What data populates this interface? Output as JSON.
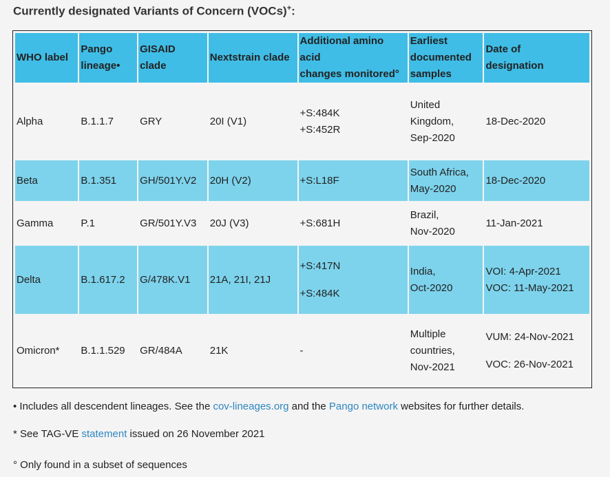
{
  "heading": {
    "text": "Currently designated Variants of Concern (VOCs)",
    "sup": "+"
  },
  "table": {
    "headers": [
      [
        "WHO label"
      ],
      [
        "Pango",
        "lineage•"
      ],
      [
        "GISAID",
        "clade"
      ],
      [
        "Nextstrain clade"
      ],
      [
        "Additional amino",
        "acid",
        "changes monitored°"
      ],
      [
        "Earliest",
        "documented",
        "samples"
      ],
      [
        "Date of",
        "designation"
      ]
    ],
    "rows": [
      {
        "who": "Alpha",
        "pango": "B.1.1.7",
        "gisaid": "GRY",
        "nextstrain": "20I (V1)",
        "changes": [
          "+S:484K",
          "+S:452R"
        ],
        "samples": [
          "United",
          "Kingdom,",
          "Sep-2020"
        ],
        "dates": [
          "18-Dec-2020"
        ]
      },
      {
        "who": "Beta",
        "pango": "B.1.351",
        "gisaid": "GH/501Y.V2",
        "nextstrain": "20H (V2)",
        "changes": [
          "+S:L18F"
        ],
        "samples": [
          "South Africa,",
          "May-2020"
        ],
        "dates": [
          "18-Dec-2020"
        ]
      },
      {
        "who": "Gamma",
        "pango": "P.1",
        "gisaid": "GR/501Y.V3",
        "nextstrain": "20J (V3)",
        "changes": [
          "+S:681H"
        ],
        "samples": [
          "Brazil,",
          "Nov-2020"
        ],
        "dates": [
          "11-Jan-2021"
        ]
      },
      {
        "who": "Delta",
        "pango": "B.1.617.2",
        "gisaid": "G/478K.V1",
        "nextstrain": "21A, 21I, 21J",
        "changes": [
          "+S:417N",
          "+S:484K"
        ],
        "samples": [
          "India,",
          "Oct-2020"
        ],
        "dates": [
          "VOI: 4-Apr-2021",
          "VOC: 11-May-2021"
        ]
      },
      {
        "who": "Omicron*",
        "pango": "B.1.1.529",
        "gisaid": "GR/484A",
        "nextstrain": "21K",
        "changes": [
          "-"
        ],
        "samples": [
          "Multiple",
          "countries,",
          "Nov-2021"
        ],
        "dates": [
          "VUM: 24-Nov-2021",
          "VOC: 26-Nov-2021"
        ]
      }
    ]
  },
  "notes": {
    "n1": {
      "pre": "• Includes all descendent lineages. See the ",
      "link1": "cov-lineages.org",
      "mid": " and the ",
      "link2": "Pango network",
      "post": " websites for further details."
    },
    "n2": {
      "pre": "* See TAG-VE ",
      "link": "statement",
      "post": " issued on 26 November 2021"
    },
    "n3": {
      "text": "° Only found in a subset of sequences"
    }
  },
  "colors": {
    "header_bg": "#3fbde6",
    "alt_row_bg": "#7dd3ec",
    "link": "#2e86c1",
    "page_bg": "#f4f4f4"
  }
}
